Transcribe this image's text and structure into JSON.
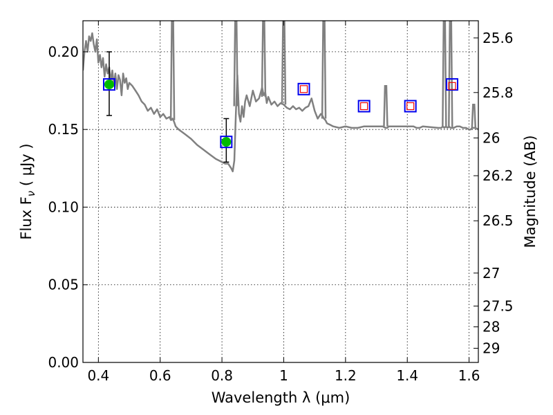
{
  "chart_data": {
    "type": "scatter",
    "xlabel": "Wavelength  λ (μm)",
    "ylabel": "Flux  F",
    "ylabel_sub": "ν",
    "ylabel_unit": "  ( μJy )",
    "y2label": "Magnitude (AB)",
    "xlim": [
      0.35,
      1.63
    ],
    "ylim": [
      0.0,
      0.22
    ],
    "grid": true,
    "x_ticks": [
      {
        "value": 0.4,
        "label": "0.4"
      },
      {
        "value": 0.6,
        "label": "0.6"
      },
      {
        "value": 0.8,
        "label": "0.8"
      },
      {
        "value": 1.0,
        "label": "1"
      },
      {
        "value": 1.2,
        "label": "1.2"
      },
      {
        "value": 1.4,
        "label": "1.4"
      },
      {
        "value": 1.6,
        "label": "1.6"
      }
    ],
    "y_ticks": [
      {
        "value": 0.0,
        "label": "0.00"
      },
      {
        "value": 0.05,
        "label": "0.05"
      },
      {
        "value": 0.1,
        "label": "0.10"
      },
      {
        "value": 0.15,
        "label": "0.15"
      },
      {
        "value": 0.2,
        "label": "0.20"
      }
    ],
    "y2_ticks": [
      {
        "value": 25.6,
        "label": "25.6"
      },
      {
        "value": 25.8,
        "label": "25.8"
      },
      {
        "value": 26.0,
        "label": "26"
      },
      {
        "value": 26.2,
        "label": "26.2"
      },
      {
        "value": 26.5,
        "label": "26.5"
      },
      {
        "value": 27.0,
        "label": "27"
      },
      {
        "value": 27.5,
        "label": "27.5"
      },
      {
        "value": 28.0,
        "label": "28"
      },
      {
        "value": 29.0,
        "label": "29"
      }
    ],
    "model_sed": {
      "color": "#808080",
      "x": [
        0.35,
        0.355,
        0.36,
        0.365,
        0.37,
        0.375,
        0.38,
        0.385,
        0.39,
        0.395,
        0.4,
        0.405,
        0.41,
        0.415,
        0.42,
        0.425,
        0.43,
        0.435,
        0.44,
        0.445,
        0.45,
        0.455,
        0.46,
        0.465,
        0.47,
        0.475,
        0.48,
        0.485,
        0.49,
        0.495,
        0.5,
        0.51,
        0.52,
        0.53,
        0.54,
        0.55,
        0.56,
        0.57,
        0.58,
        0.59,
        0.6,
        0.61,
        0.62,
        0.63,
        0.635,
        0.64,
        0.645,
        0.65,
        0.66,
        0.68,
        0.7,
        0.72,
        0.74,
        0.76,
        0.78,
        0.8,
        0.81,
        0.82,
        0.83,
        0.835,
        0.84,
        0.845,
        0.85,
        0.855,
        0.86,
        0.865,
        0.87,
        0.875,
        0.88,
        0.89,
        0.9,
        0.91,
        0.92,
        0.93,
        0.935,
        0.94,
        0.945,
        0.95,
        0.96,
        0.97,
        0.98,
        0.99,
        1.0,
        1.01,
        1.02,
        1.03,
        1.04,
        1.05,
        1.06,
        1.07,
        1.08,
        1.09,
        1.1,
        1.11,
        1.12,
        1.125,
        1.13,
        1.135,
        1.14,
        1.15,
        1.16,
        1.18,
        1.2,
        1.22,
        1.24,
        1.26,
        1.28,
        1.3,
        1.32,
        1.33,
        1.335,
        1.34,
        1.35,
        1.37,
        1.4,
        1.42,
        1.43,
        1.44,
        1.45,
        1.5,
        1.51,
        1.515,
        1.52,
        1.525,
        1.53,
        1.535,
        1.54,
        1.545,
        1.55,
        1.56,
        1.57,
        1.58,
        1.59,
        1.6,
        1.605,
        1.61,
        1.615,
        1.62,
        1.63
      ],
      "y": [
        0.188,
        0.2,
        0.207,
        0.2,
        0.21,
        0.207,
        0.212,
        0.205,
        0.2,
        0.208,
        0.193,
        0.198,
        0.19,
        0.196,
        0.184,
        0.192,
        0.186,
        0.19,
        0.181,
        0.188,
        0.178,
        0.186,
        0.176,
        0.185,
        0.182,
        0.172,
        0.186,
        0.18,
        0.183,
        0.176,
        0.18,
        0.178,
        0.175,
        0.172,
        0.168,
        0.166,
        0.162,
        0.164,
        0.16,
        0.163,
        0.158,
        0.16,
        0.157,
        0.158,
        0.156,
        0.157,
        0.155,
        0.152,
        0.15,
        0.147,
        0.144,
        0.14,
        0.137,
        0.134,
        0.131,
        0.129,
        0.128,
        0.128,
        0.125,
        0.123,
        0.13,
        0.16,
        0.185,
        0.16,
        0.155,
        0.165,
        0.158,
        0.168,
        0.172,
        0.165,
        0.175,
        0.168,
        0.17,
        0.177,
        0.172,
        0.174,
        0.167,
        0.171,
        0.166,
        0.168,
        0.165,
        0.167,
        0.166,
        0.164,
        0.163,
        0.165,
        0.163,
        0.164,
        0.162,
        0.164,
        0.165,
        0.17,
        0.162,
        0.157,
        0.16,
        0.159,
        0.157,
        0.156,
        0.154,
        0.153,
        0.152,
        0.151,
        0.152,
        0.151,
        0.151,
        0.152,
        0.152,
        0.152,
        0.152,
        0.151,
        0.151,
        0.152,
        0.152,
        0.152,
        0.152,
        0.152,
        0.151,
        0.151,
        0.152,
        0.151,
        0.151,
        0.152,
        0.151,
        0.152,
        0.151,
        0.152,
        0.151,
        0.151,
        0.151,
        0.152,
        0.152,
        0.151,
        0.151,
        0.15,
        0.15,
        0.151,
        0.151,
        0.151,
        0.15
      ],
      "spikes": [
        {
          "x": 0.64,
          "base": 0.156,
          "peak": 0.22
        },
        {
          "x": 0.845,
          "base": 0.165,
          "peak": 0.22
        },
        {
          "x": 0.935,
          "base": 0.171,
          "peak": 0.22
        },
        {
          "x": 1.0,
          "base": 0.166,
          "peak": 0.22
        },
        {
          "x": 1.13,
          "base": 0.157,
          "peak": 0.22
        },
        {
          "x": 1.33,
          "base": 0.152,
          "peak": 0.178
        },
        {
          "x": 1.52,
          "base": 0.152,
          "peak": 0.22
        },
        {
          "x": 1.54,
          "base": 0.151,
          "peak": 0.22
        },
        {
          "x": 1.615,
          "base": 0.151,
          "peak": 0.166
        }
      ]
    },
    "photometry": {
      "color": "#00bb00",
      "points": [
        {
          "x": 0.435,
          "y": 0.179,
          "yerr_low": 0.159,
          "yerr_high": 0.2
        },
        {
          "x": 0.814,
          "y": 0.142,
          "yerr_low": 0.129,
          "yerr_high": 0.157
        }
      ]
    },
    "model_flux": {
      "color": "#0000ee",
      "points": [
        {
          "x": 0.435,
          "y": 0.179
        },
        {
          "x": 0.814,
          "y": 0.142
        },
        {
          "x": 1.065,
          "y": 0.176
        },
        {
          "x": 1.26,
          "y": 0.165
        },
        {
          "x": 1.41,
          "y": 0.165
        },
        {
          "x": 1.545,
          "y": 0.179
        }
      ]
    },
    "upper_limits": {
      "color": "#ee0000",
      "points": [
        {
          "x": 1.065,
          "y": 0.176
        },
        {
          "x": 1.26,
          "y": 0.165
        },
        {
          "x": 1.41,
          "y": 0.165
        },
        {
          "x": 1.545,
          "y": 0.178
        }
      ]
    }
  }
}
